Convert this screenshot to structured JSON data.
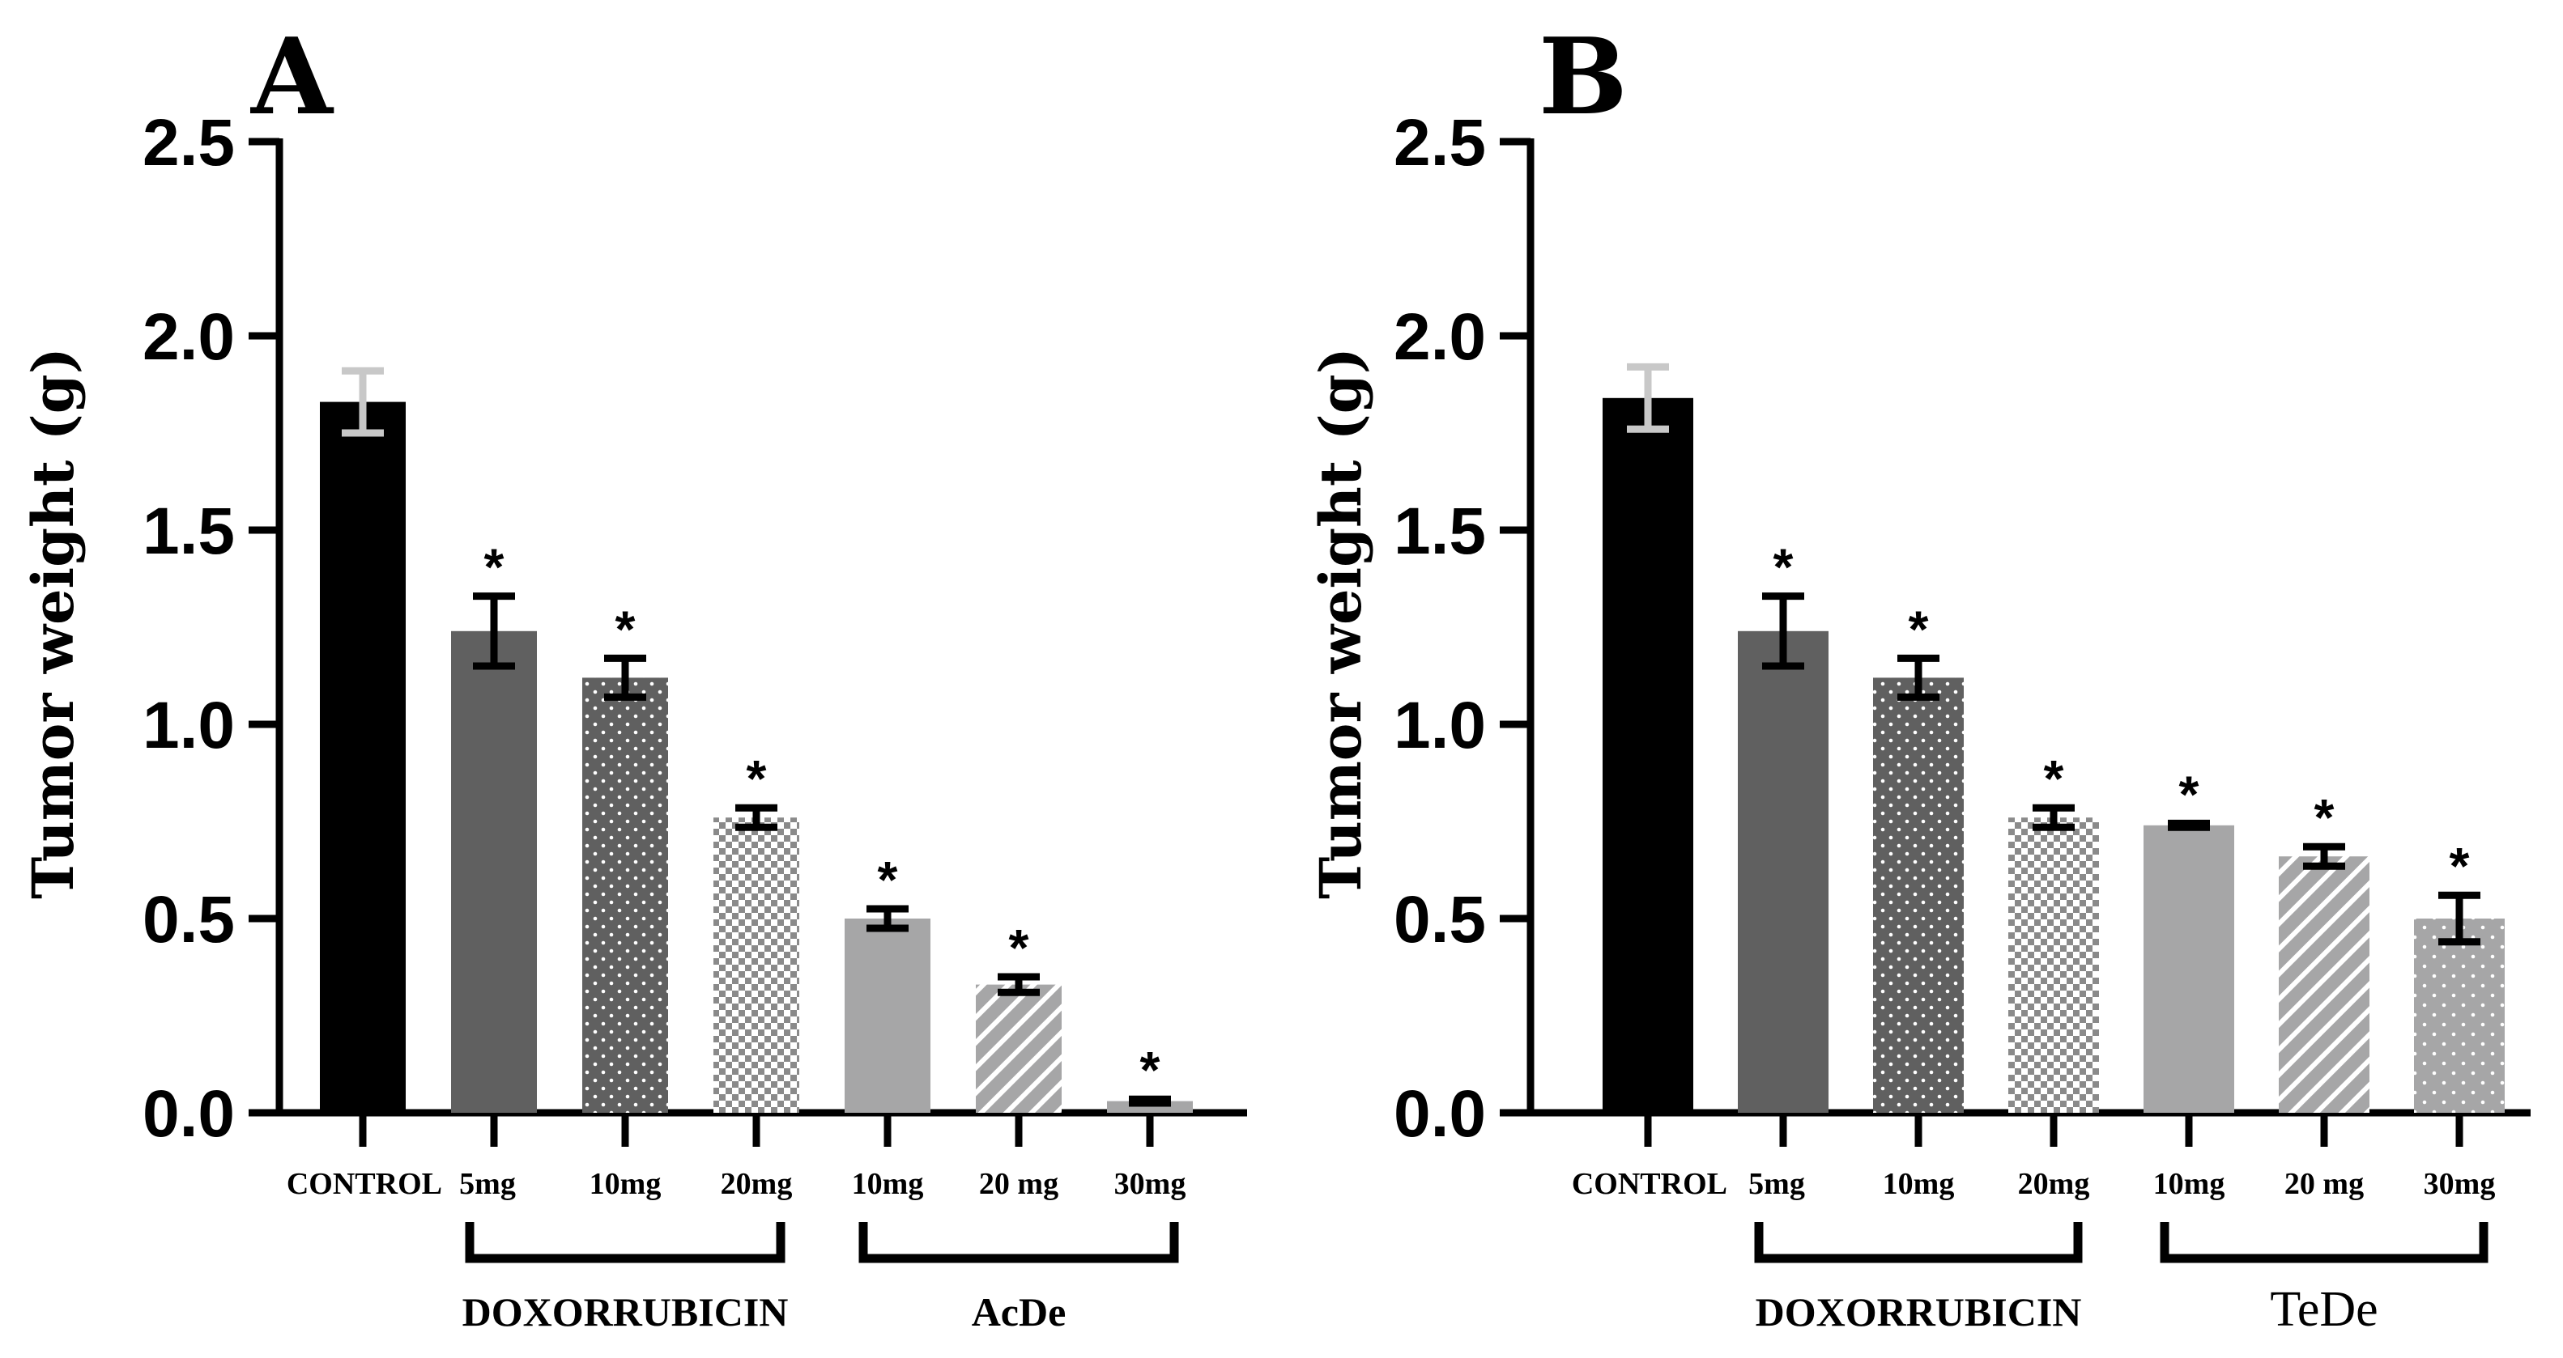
{
  "chart_data": [
    {
      "type": "bar",
      "panel": "A",
      "ylabel": "Tumor weight (g)",
      "ylim": [
        0,
        2.5
      ],
      "yticks": [
        "0.0",
        "0.5",
        "1.0",
        "1.5",
        "2.0",
        "2.5"
      ],
      "categories": [
        "CONTROL",
        "5mg",
        "10mg",
        "20mg",
        "10mg",
        "20 mg",
        "30mg"
      ],
      "values": [
        1.83,
        1.24,
        1.12,
        0.76,
        0.5,
        0.33,
        0.03
      ],
      "errors": [
        0.08,
        0.09,
        0.05,
        0.025,
        0.025,
        0.02,
        0.005
      ],
      "significance": [
        "",
        "*",
        "*",
        "*",
        "*",
        "*",
        "*"
      ],
      "groups": [
        {
          "label": "DOXORRUBICIN",
          "from": 1,
          "to": 3
        },
        {
          "label": "AcDe",
          "from": 4,
          "to": 6
        }
      ]
    },
    {
      "type": "bar",
      "panel": "B",
      "ylabel": "Tumor weight (g)",
      "ylim": [
        0,
        2.5
      ],
      "yticks": [
        "0.0",
        "0.5",
        "1.0",
        "1.5",
        "2.0",
        "2.5"
      ],
      "categories": [
        "CONTROL",
        "5mg",
        "10mg",
        "20mg",
        "10mg",
        "20 mg",
        "30mg"
      ],
      "values": [
        1.84,
        1.24,
        1.12,
        0.76,
        0.74,
        0.66,
        0.5
      ],
      "errors": [
        0.08,
        0.09,
        0.05,
        0.025,
        0.005,
        0.025,
        0.06
      ],
      "significance": [
        "",
        "*",
        "*",
        "*",
        "*",
        "*",
        "*"
      ],
      "groups": [
        {
          "label": "DOXORRUBICIN",
          "from": 1,
          "to": 3
        },
        {
          "label": "TeDe",
          "from": 4,
          "to": 6
        }
      ]
    }
  ],
  "colors": {
    "control": "#000000",
    "dox": "#606060",
    "treat": "#a6a6a7",
    "pattern_light": "#ffffff",
    "control_error": "#c8c8c8"
  }
}
